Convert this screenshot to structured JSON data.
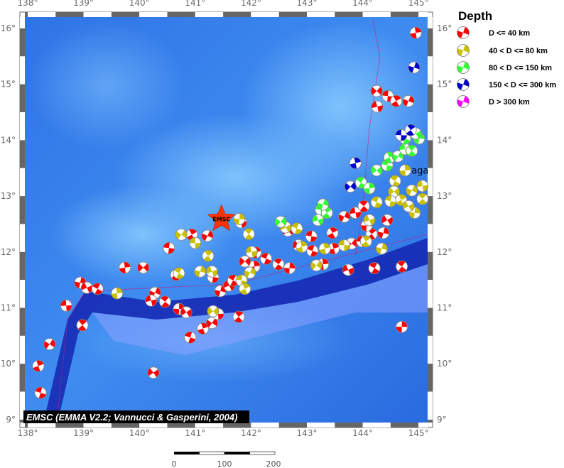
{
  "map": {
    "lon_range": [
      137.95,
      145.17
    ],
    "lat_range": [
      8.95,
      16.2
    ],
    "lon_ticks": [
      138,
      139,
      140,
      141,
      142,
      143,
      144,
      145
    ],
    "lat_ticks": [
      9,
      10,
      11,
      12,
      13,
      14,
      15,
      16
    ],
    "degree_symbol": "°",
    "credit": "EMSC (EMMA V2.2; Vannucci & Gasperini, 2004)",
    "epicenter": {
      "label": "EMSC",
      "lon": 141.47,
      "lat": 12.59,
      "color": "#ff3300"
    },
    "place_label": {
      "text": "aga",
      "lon": 145.0,
      "lat": 13.45
    },
    "scale_bar": {
      "labels": [
        "0",
        "100",
        "200"
      ],
      "unit_max_km": 200
    }
  },
  "legend": {
    "title": "Depth",
    "items": [
      {
        "class": "r",
        "label": "D <= 40 km",
        "color": "#ff0000"
      },
      {
        "class": "y",
        "label": "40 < D <= 80 km",
        "color": "#c8c000"
      },
      {
        "class": "g",
        "label": "80 < D <= 150 km",
        "color": "#33ff33"
      },
      {
        "class": "b",
        "label": "150 < D <= 300 km",
        "color": "#0000cc"
      },
      {
        "class": "m",
        "label": "D > 300 km",
        "color": "#ff00ff"
      }
    ]
  },
  "events": [
    [
      144.95,
      15.92,
      "r"
    ],
    [
      144.25,
      14.88,
      "r"
    ],
    [
      144.45,
      14.79,
      "r"
    ],
    [
      144.6,
      14.7,
      "r"
    ],
    [
      144.82,
      14.7,
      "r"
    ],
    [
      144.26,
      14.6,
      "r"
    ],
    [
      144.7,
      11.74,
      "r"
    ],
    [
      144.7,
      10.66,
      "r"
    ],
    [
      140.25,
      9.84,
      "r"
    ],
    [
      138.23,
      9.48,
      "r"
    ],
    [
      138.19,
      9.96,
      "r"
    ],
    [
      138.39,
      10.35,
      "r"
    ],
    [
      138.69,
      11.04,
      "r"
    ],
    [
      138.98,
      10.69,
      "r"
    ],
    [
      138.94,
      11.45,
      "r"
    ],
    [
      139.06,
      11.36,
      "r"
    ],
    [
      139.25,
      11.34,
      "r"
    ],
    [
      139.74,
      11.72,
      "r"
    ],
    [
      140.07,
      11.72,
      "r"
    ],
    [
      140.53,
      12.07,
      "r"
    ],
    [
      140.66,
      11.59,
      "r"
    ],
    [
      140.28,
      11.27,
      "r"
    ],
    [
      140.21,
      11.13,
      "r"
    ],
    [
      140.46,
      11.11,
      "r"
    ],
    [
      140.71,
      10.98,
      "r"
    ],
    [
      140.84,
      10.92,
      "r"
    ],
    [
      140.91,
      10.47,
      "r"
    ],
    [
      141.14,
      10.63,
      "r"
    ],
    [
      141.3,
      10.73,
      "r"
    ],
    [
      141.41,
      10.89,
      "r"
    ],
    [
      141.78,
      10.84,
      "r"
    ],
    [
      141.45,
      11.3,
      "r"
    ],
    [
      141.61,
      11.4,
      "r"
    ],
    [
      141.68,
      11.49,
      "r"
    ],
    [
      142.06,
      11.74,
      "r"
    ],
    [
      141.89,
      11.83,
      "r"
    ],
    [
      141.32,
      11.55,
      "r"
    ],
    [
      140.94,
      12.31,
      "r"
    ],
    [
      141.22,
      12.29,
      "r"
    ],
    [
      141.82,
      12.53,
      "r"
    ],
    [
      142.49,
      11.78,
      "r"
    ],
    [
      142.69,
      11.71,
      "r"
    ],
    [
      142.85,
      12.12,
      "r"
    ],
    [
      143.1,
      12.02,
      "r"
    ],
    [
      143.48,
      12.06,
      "r"
    ],
    [
      143.8,
      12.15,
      "r"
    ],
    [
      143.99,
      12.19,
      "r"
    ],
    [
      144.16,
      12.32,
      "r"
    ],
    [
      144.37,
      12.34,
      "r"
    ],
    [
      143.74,
      11.68,
      "r"
    ],
    [
      144.21,
      11.71,
      "r"
    ],
    [
      143.29,
      11.78,
      "r"
    ],
    [
      142.66,
      12.38,
      "r"
    ],
    [
      143.08,
      12.28,
      "r"
    ],
    [
      143.46,
      12.34,
      "r"
    ],
    [
      143.67,
      12.63,
      "r"
    ],
    [
      143.87,
      12.7,
      "r"
    ],
    [
      144.02,
      12.82,
      "r"
    ],
    [
      144.07,
      12.47,
      "r"
    ],
    [
      144.44,
      12.57,
      "r"
    ],
    [
      142.27,
      11.88,
      "r"
    ],
    [
      142.08,
      11.99,
      "r"
    ],
    [
      140.75,
      12.31,
      "y"
    ],
    [
      141.0,
      12.16,
      "y"
    ],
    [
      141.23,
      11.93,
      "y"
    ],
    [
      141.09,
      11.65,
      "y"
    ],
    [
      141.3,
      11.65,
      "y"
    ],
    [
      140.71,
      11.62,
      "y"
    ],
    [
      139.6,
      11.26,
      "y"
    ],
    [
      141.32,
      10.94,
      "y"
    ],
    [
      141.83,
      11.49,
      "y"
    ],
    [
      141.89,
      11.34,
      "y"
    ],
    [
      141.98,
      11.63,
      "y"
    ],
    [
      142.01,
      12.0,
      "y"
    ],
    [
      141.96,
      12.32,
      "y"
    ],
    [
      141.79,
      12.59,
      "y"
    ],
    [
      142.62,
      12.44,
      "y"
    ],
    [
      142.82,
      12.42,
      "y"
    ],
    [
      142.91,
      12.09,
      "y"
    ],
    [
      143.17,
      11.76,
      "y"
    ],
    [
      143.67,
      12.12,
      "y"
    ],
    [
      144.06,
      12.19,
      "y"
    ],
    [
      144.34,
      12.06,
      "y"
    ],
    [
      144.12,
      12.57,
      "y"
    ],
    [
      144.58,
      13.27,
      "y"
    ],
    [
      144.76,
      13.46,
      "y"
    ],
    [
      144.56,
      13.08,
      "y"
    ],
    [
      144.5,
      12.91,
      "y"
    ],
    [
      144.69,
      12.93,
      "y"
    ],
    [
      144.88,
      13.1,
      "y"
    ],
    [
      145.07,
      13.18,
      "y"
    ],
    [
      145.07,
      12.95,
      "y"
    ],
    [
      144.93,
      12.7,
      "y"
    ],
    [
      144.82,
      12.82,
      "y"
    ],
    [
      144.25,
      12.89,
      "y"
    ],
    [
      143.32,
      12.06,
      "y"
    ],
    [
      142.53,
      12.54,
      "g"
    ],
    [
      143.25,
      12.76,
      "g"
    ],
    [
      143.36,
      12.7,
      "g"
    ],
    [
      143.29,
      12.85,
      "g"
    ],
    [
      143.2,
      12.57,
      "g"
    ],
    [
      143.97,
      13.24,
      "g"
    ],
    [
      144.12,
      13.14,
      "g"
    ],
    [
      144.25,
      13.46,
      "g"
    ],
    [
      144.44,
      13.55,
      "g"
    ],
    [
      144.48,
      13.69,
      "g"
    ],
    [
      144.63,
      13.71,
      "g"
    ],
    [
      144.76,
      13.84,
      "g"
    ],
    [
      144.88,
      13.81,
      "g"
    ],
    [
      145.01,
      14.03,
      "g"
    ],
    [
      144.95,
      14.12,
      "g"
    ],
    [
      144.76,
      14.03,
      "g"
    ],
    [
      143.87,
      13.59,
      "b"
    ],
    [
      143.78,
      13.17,
      "b"
    ],
    [
      144.69,
      14.09,
      "b"
    ],
    [
      144.86,
      14.18,
      "b"
    ],
    [
      144.92,
      15.3,
      "b"
    ]
  ]
}
